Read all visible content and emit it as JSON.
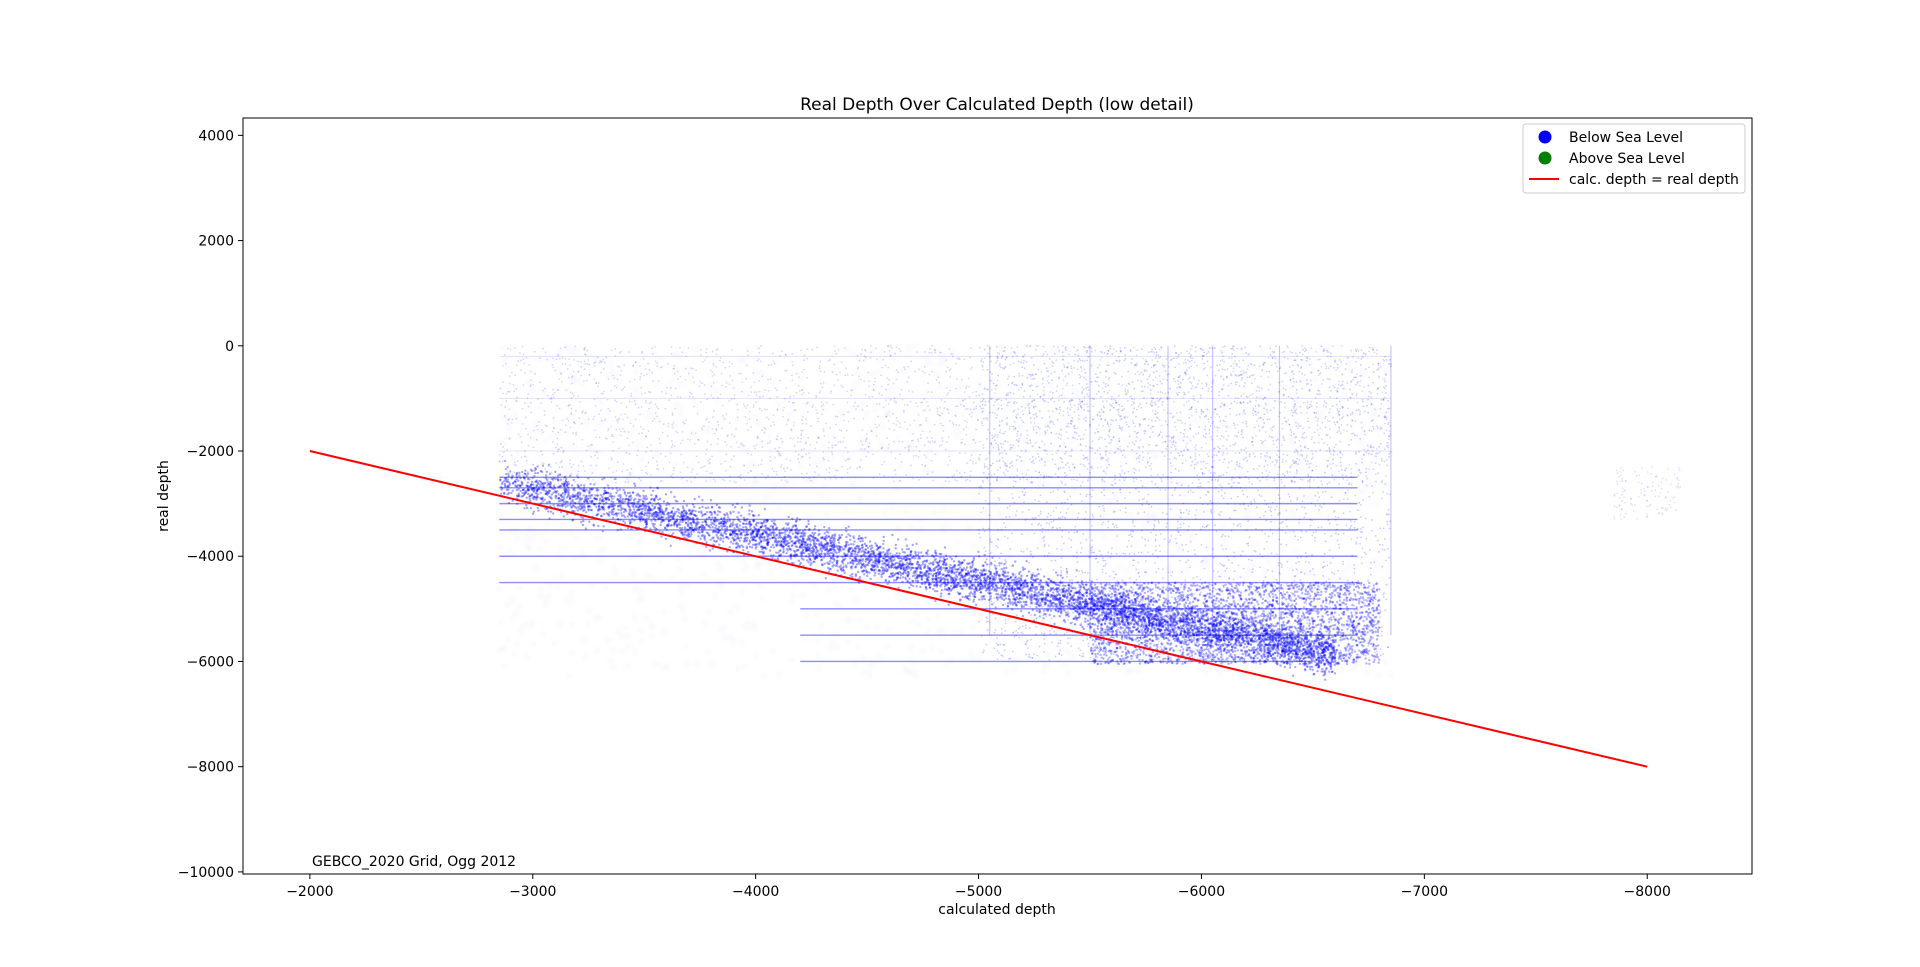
{
  "chart_data": {
    "type": "scatter",
    "title": "Real Depth Over Calculated Depth (low detail)",
    "xlabel": "calculated depth",
    "ylabel": "real depth",
    "annotation": "GEBCO_2020 Grid, Ogg 2012",
    "x_axis_inverted": true,
    "xlim": [
      -1700,
      -8470
    ],
    "ylim": [
      -10040,
      4330
    ],
    "xticks": [
      -2000,
      -3000,
      -4000,
      -5000,
      -6000,
      -7000,
      -8000
    ],
    "yticks": [
      4000,
      2000,
      0,
      -2000,
      -4000,
      -6000,
      -8000,
      -10000
    ],
    "xtick_labels": [
      "−2000",
      "−3000",
      "−4000",
      "−5000",
      "−6000",
      "−7000",
      "−8000"
    ],
    "ytick_labels": [
      "4000",
      "2000",
      "0",
      "−2000",
      "−4000",
      "−6000",
      "−8000",
      "−10000"
    ],
    "grid": false,
    "legend_position": "top-right",
    "series": [
      {
        "name": "Below Sea Level",
        "kind": "scatter",
        "color": "#0000ff",
        "marker": "circle",
        "clusters": [
          {
            "label": "main-diagonal-band",
            "x_range": [
              -2850,
              -6600
            ],
            "y_from": [
              -2700,
              -6000
            ],
            "density": "high"
          },
          {
            "label": "upper-diffuse-cloud",
            "x_range": [
              -2850,
              -6850
            ],
            "y_range": [
              0,
              -2500
            ],
            "density": "low"
          },
          {
            "label": "lower-right-block",
            "x_range": [
              -5600,
              -6850
            ],
            "y_range": [
              -4500,
              -6100
            ],
            "density": "high"
          },
          {
            "label": "far-right-tail",
            "x_range": [
              -7900,
              -8150
            ],
            "y_range": [
              -2400,
              -3200
            ],
            "density": "very-low"
          }
        ]
      },
      {
        "name": "Above Sea Level",
        "kind": "scatter",
        "color": "#008000",
        "marker": "circle",
        "points": []
      },
      {
        "name": "calc. depth = real depth",
        "kind": "line",
        "color": "#ff0000",
        "x": [
          -2000,
          -8000
        ],
        "y": [
          -2000,
          -8000
        ]
      }
    ]
  }
}
